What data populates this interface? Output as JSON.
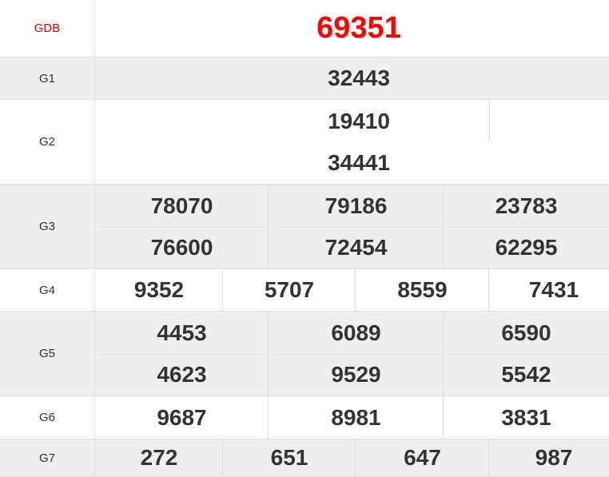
{
  "colors": {
    "special": "#ff0000",
    "label_special": "#d40000",
    "text": "#333333",
    "alt_row": "#eeeeee"
  },
  "prizes": [
    {
      "label": "GDB",
      "numbers": [
        "69351"
      ]
    },
    {
      "label": "G1",
      "numbers": [
        "32443"
      ]
    },
    {
      "label": "G2",
      "numbers": [
        "19410",
        "34441"
      ]
    },
    {
      "label": "G3",
      "numbers": [
        "78070",
        "79186",
        "23783",
        "76600",
        "72454",
        "62295"
      ]
    },
    {
      "label": "G4",
      "numbers": [
        "9352",
        "5707",
        "8559",
        "7431"
      ]
    },
    {
      "label": "G5",
      "numbers": [
        "4453",
        "6089",
        "6590",
        "4623",
        "9529",
        "5542"
      ]
    },
    {
      "label": "G6",
      "numbers": [
        "9687",
        "8981",
        "3831"
      ]
    },
    {
      "label": "G7",
      "numbers": [
        "272",
        "651",
        "647",
        "987"
      ]
    }
  ]
}
